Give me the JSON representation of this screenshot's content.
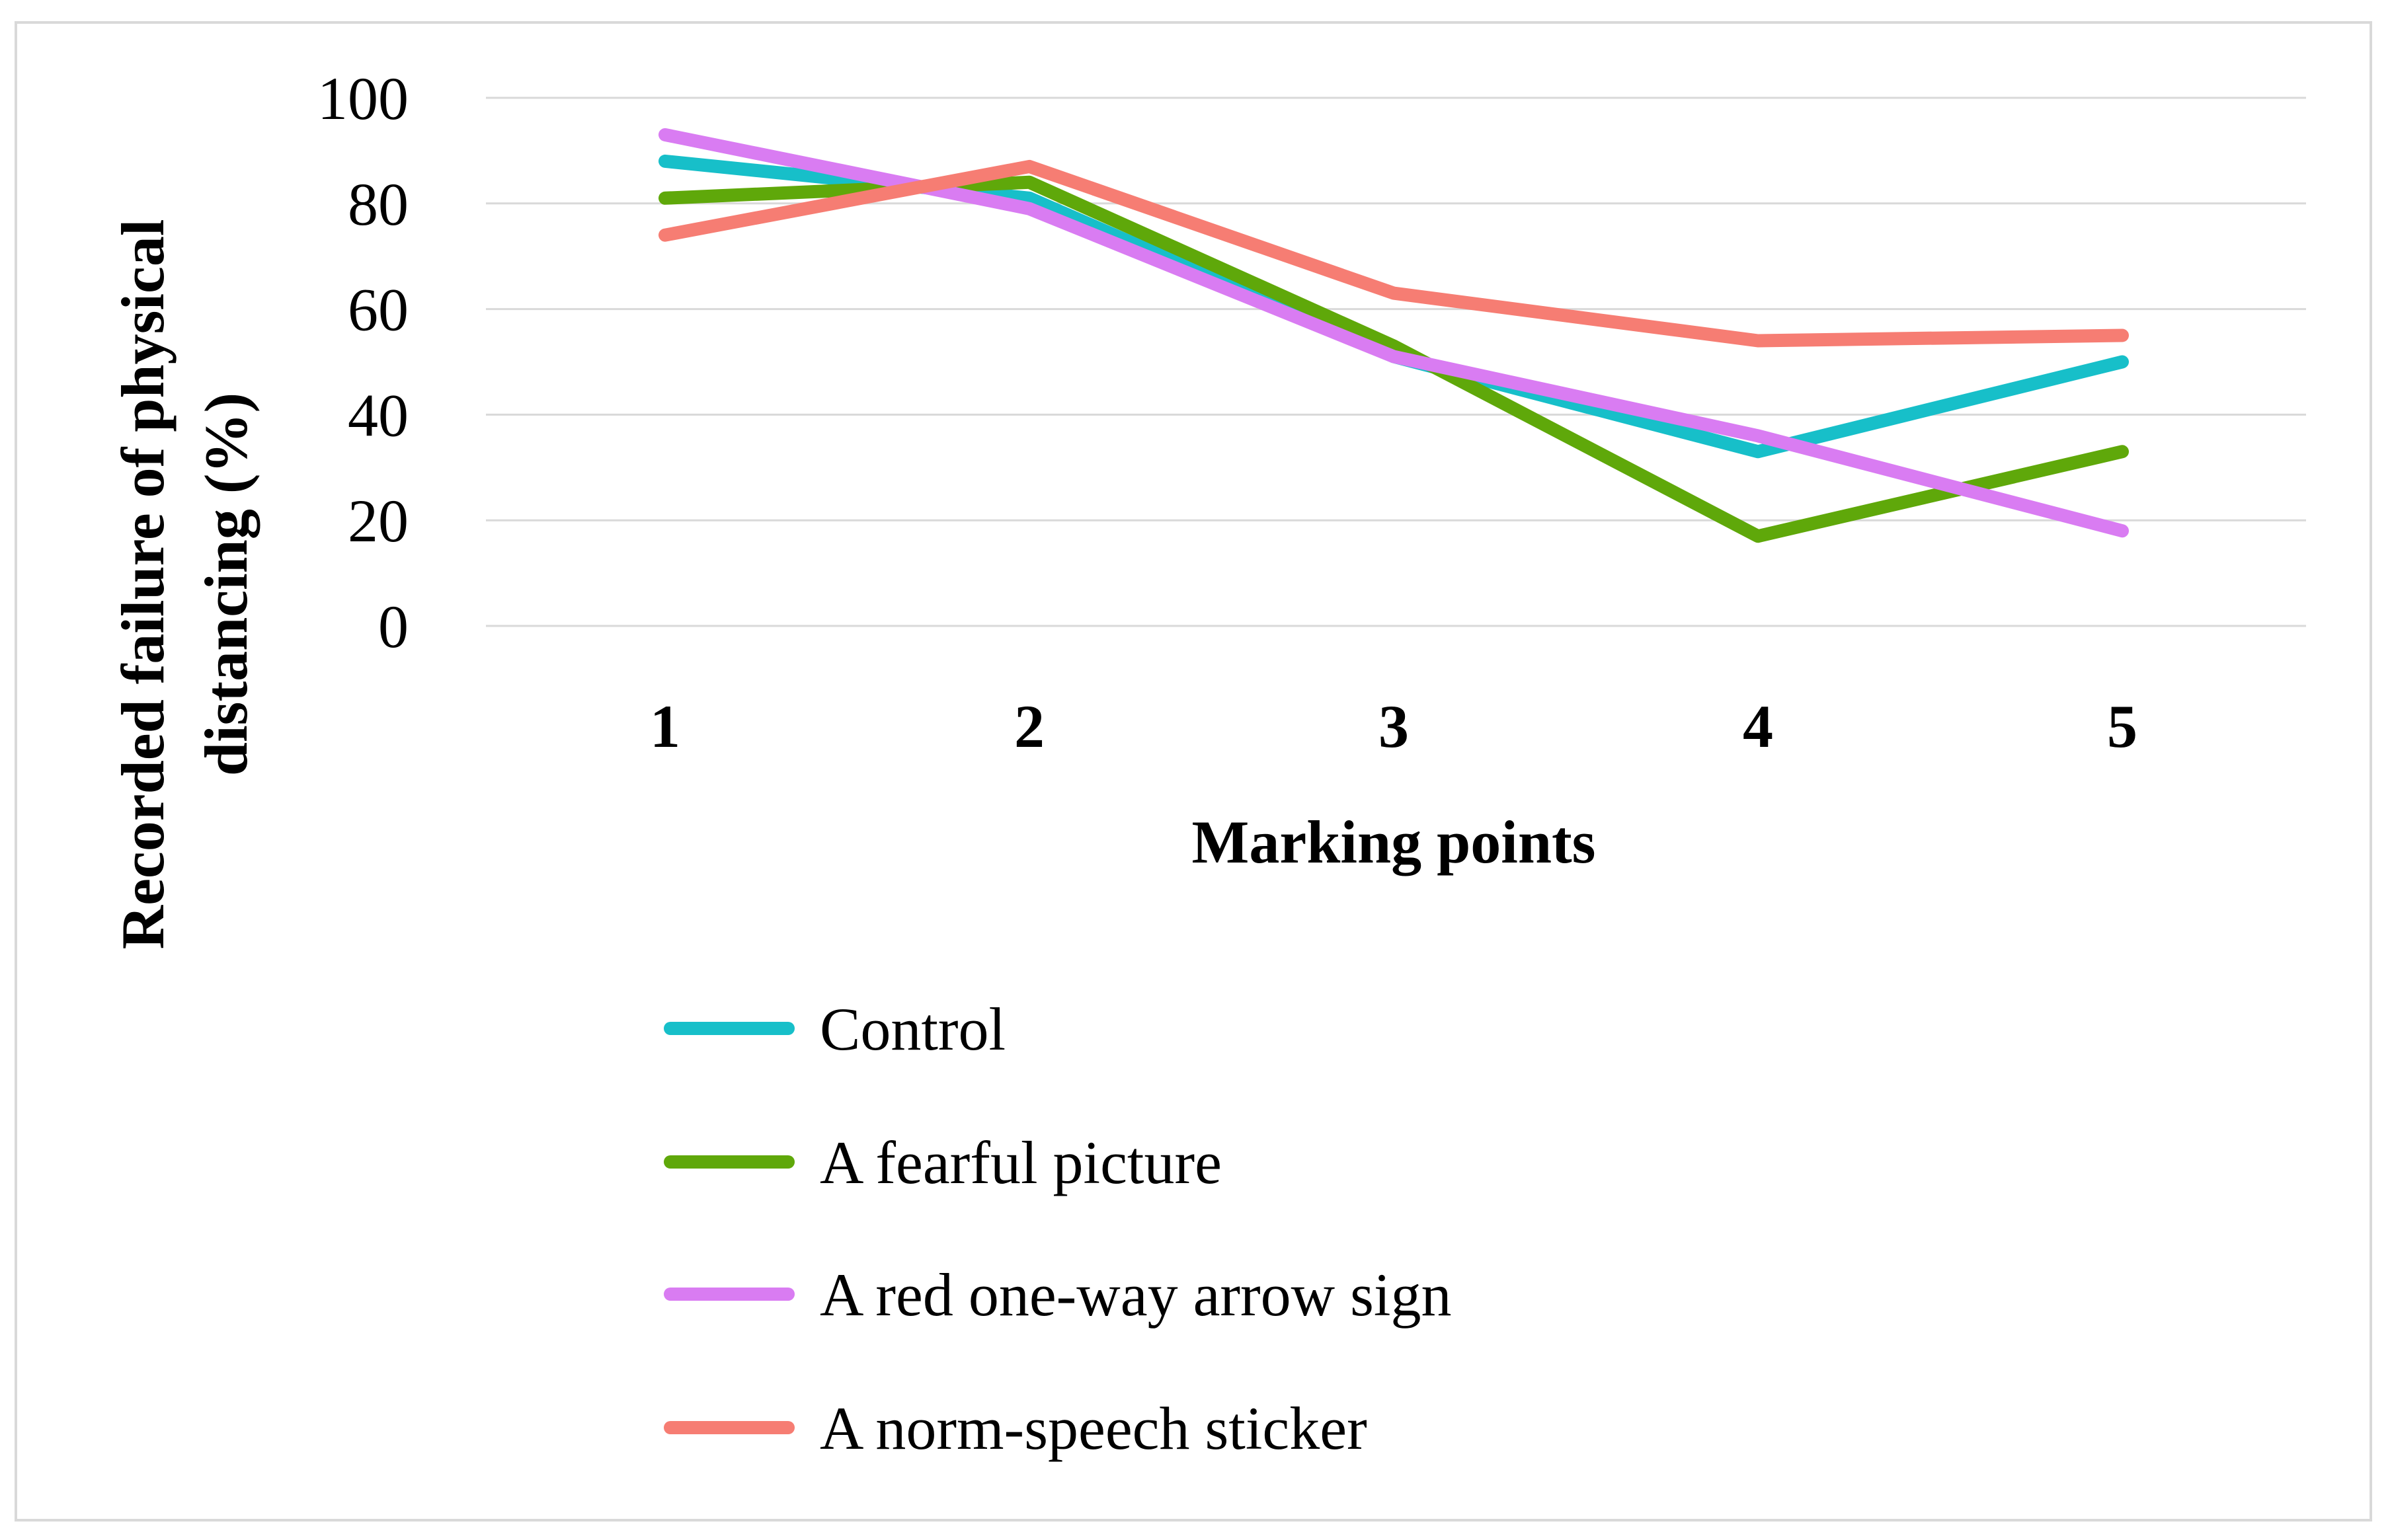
{
  "chart_data": {
    "type": "line",
    "title": "",
    "xlabel": "Marking points",
    "ylabel_lines": [
      "Recorded failure of physical",
      "distancing (%)"
    ],
    "categories": [
      "1",
      "2",
      "3",
      "4",
      "5"
    ],
    "yticks": [
      "0",
      "20",
      "40",
      "60",
      "80",
      "100"
    ],
    "ylim": [
      0,
      100
    ],
    "grid": true,
    "legend_position": "bottom",
    "series": [
      {
        "name": "Control",
        "color": "#17bfc9",
        "values": [
          88,
          81,
          51,
          33,
          50
        ]
      },
      {
        "name": "A fearful picture",
        "color": "#5fa80a",
        "values": [
          81,
          84,
          53,
          17,
          33
        ]
      },
      {
        "name": "A red one-way arrow sign",
        "color": "#d97cf2",
        "values": [
          93,
          79,
          51,
          36,
          18
        ]
      },
      {
        "name": "A norm-speech sticker",
        "color": "#f67d73",
        "values": [
          74,
          87,
          63,
          54,
          55
        ]
      }
    ]
  }
}
